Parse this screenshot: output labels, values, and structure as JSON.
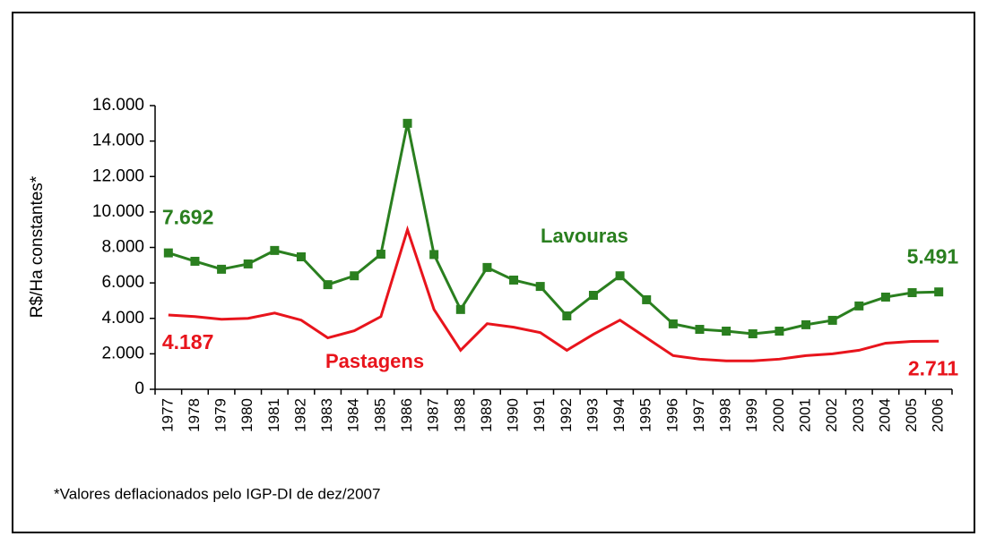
{
  "chart_data": {
    "type": "line",
    "y_label": "R$/Ha constantes*",
    "footnote": "*Valores deflacionados pelo IGP-DI de dez/2007",
    "categories": [
      "1977",
      "1978",
      "1979",
      "1980",
      "1981",
      "1982",
      "1983",
      "1984",
      "1985",
      "1986",
      "1987",
      "1988",
      "1989",
      "1990",
      "1991",
      "1992",
      "1993",
      "1994",
      "1995",
      "1996",
      "1997",
      "1998",
      "1999",
      "2000",
      "2001",
      "2002",
      "2003",
      "2004",
      "2005",
      "2006"
    ],
    "ylim": [
      0,
      16000
    ],
    "yticks": [
      0,
      {
        "value": 2000,
        "label": "2.000"
      },
      {
        "value": 4000,
        "label": "4.000"
      },
      {
        "value": 6000,
        "label": "6.000"
      },
      {
        "value": 8000,
        "label": "8.000"
      },
      {
        "value": 10000,
        "label": "10.000"
      },
      {
        "value": 12000,
        "label": "12.000"
      },
      {
        "value": 14000,
        "label": "14.000"
      },
      {
        "value": 16000,
        "label": "16.000"
      }
    ],
    "series": [
      {
        "name": "Lavouras",
        "color": "#2a7f1f",
        "marker": "square",
        "values": [
          7692,
          7220,
          6770,
          7070,
          7830,
          7470,
          5900,
          6400,
          7620,
          15000,
          7600,
          4500,
          6870,
          6160,
          5800,
          4140,
          5300,
          6400,
          5050,
          3690,
          3380,
          3280,
          3130,
          3280,
          3640,
          3890,
          4700,
          5200,
          5450,
          5491
        ],
        "value_labels": [
          "7.692",
          null,
          null,
          null,
          null,
          null,
          null,
          null,
          null,
          null,
          null,
          null,
          null,
          null,
          null,
          null,
          null,
          null,
          null,
          null,
          null,
          null,
          null,
          null,
          null,
          null,
          null,
          null,
          null,
          "5.491"
        ]
      },
      {
        "name": "Pastagens",
        "color": "#e8141c",
        "marker": "none",
        "values": [
          4187,
          4100,
          3950,
          4000,
          4300,
          3900,
          2900,
          3300,
          4100,
          9000,
          4500,
          2200,
          3700,
          3500,
          3200,
          2200,
          3100,
          3900,
          2900,
          1900,
          1700,
          1600,
          1600,
          1700,
          1900,
          2000,
          2200,
          2600,
          2700,
          2711
        ],
        "value_labels": [
          "4.187",
          null,
          null,
          null,
          null,
          null,
          null,
          null,
          null,
          null,
          null,
          null,
          null,
          null,
          null,
          null,
          null,
          null,
          null,
          null,
          null,
          null,
          null,
          null,
          null,
          null,
          null,
          null,
          null,
          "2.711"
        ]
      }
    ]
  }
}
